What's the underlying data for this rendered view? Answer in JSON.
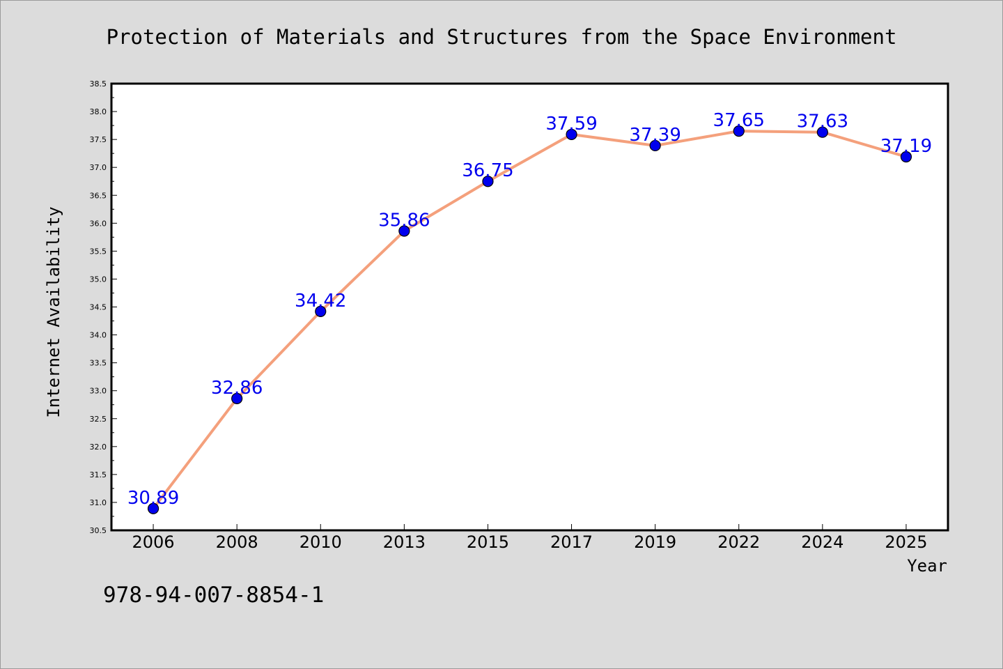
{
  "chart_data": {
    "type": "line",
    "title": "Protection of Materials and Structures from the Space Environment",
    "xlabel": "Year",
    "ylabel": "Internet Availability",
    "categories": [
      "2006",
      "2008",
      "2010",
      "2013",
      "2015",
      "2017",
      "2019",
      "2022",
      "2024",
      "2025"
    ],
    "series": [
      {
        "values": [
          30.89,
          32.86,
          34.42,
          35.86,
          36.75,
          37.59,
          37.39,
          37.65,
          37.63,
          37.19
        ],
        "labels": [
          "30.89",
          "32.86",
          "34.42",
          "35.86",
          "36.75",
          "37.59",
          "37.39",
          "37.65",
          "37.63",
          "37.19"
        ]
      }
    ],
    "ylim": [
      30.5,
      38.5
    ],
    "y_ticks": [
      "30.5",
      "31.0",
      "31.5",
      "32.0",
      "32.5",
      "33.0",
      "33.5",
      "34.0",
      "34.5",
      "35.0",
      "35.5",
      "36.0",
      "36.5",
      "37.0",
      "37.5",
      "38.0",
      "38.5"
    ],
    "grid": false,
    "line_color": "#f4a07c",
    "marker_color": "#0000ee",
    "label_color": "#0000ee"
  },
  "footer": {
    "text": "978-94-007-8854-1"
  }
}
